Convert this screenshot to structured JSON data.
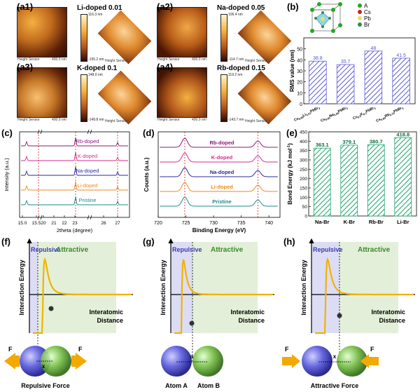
{
  "afm": {
    "a1": {
      "label": "(a1)",
      "title": "Li-doped 0.01",
      "cmax": "116.3 nm",
      "cmin": "-155.2 nm"
    },
    "a2": {
      "label": "(a2)",
      "title": "Na-doped 0.05",
      "cmax": "106.4 nm",
      "cmin": "-114.7 nm"
    },
    "a3": {
      "label": "(a3)",
      "title": "K-doped 0.1",
      "cmax": "148.0 nm",
      "cmin": "-149.8 nm"
    },
    "a4": {
      "label": "(a4)",
      "title": "Rb-doped 0.15",
      "cmax": "119.2 nm",
      "cmin": "-143.7 nm"
    },
    "sensor": "Height Sensor",
    "scale": "400.0 nm"
  },
  "panel_labels": {
    "b": "(b)",
    "c": "(c)",
    "d": "(d)",
    "e": "(e)",
    "f": "(f)",
    "g": "(g)",
    "h": "(h)"
  },
  "crystal_legend": [
    {
      "symbol": "A",
      "color": "#22aa22"
    },
    {
      "symbol": "Cs",
      "color": "#cc2222"
    },
    {
      "symbol": "Pb",
      "color": "#e8e060"
    },
    {
      "symbol": "Br",
      "color": "#2e8b57"
    }
  ],
  "colors": {
    "rb": "#8b1a7a",
    "k": "#d62e8c",
    "na": "#2a2aa0",
    "li": "#f08a1c",
    "pristine": "#1f8b8b",
    "hatch_blue": "#5b5bd6",
    "hatch_green": "#1aa36a",
    "curve": "#f2b300",
    "repulsive_bg": "#dcdcf5",
    "attractive_bg": "#e3efd8"
  },
  "chart_data": [
    {
      "type": "bar",
      "panel": "(b)",
      "categories": [
        "Cs0.99Li0.01PbBr3",
        "Cs0.95Na0.05PbBr3",
        "Cs0.9K0.1PbBr3",
        "Cs0.85Rb0.15PbBr3"
      ],
      "category_labels": [
        {
          "main": "Cs",
          "sub": "0.99",
          "mid": "Li",
          "sub2": "0.01",
          "end": "PbBr",
          "sub3": "3"
        },
        {
          "main": "Cs",
          "sub": "0.95",
          "mid": "Na",
          "sub2": "0.05",
          "end": "PbBr",
          "sub3": "3"
        },
        {
          "main": "Cs",
          "sub": "0.9",
          "mid": "K",
          "sub2": "0.1",
          "end": "PbBr",
          "sub3": "3"
        },
        {
          "main": "Cs",
          "sub": "0.85",
          "mid": "Rb",
          "sub2": "0.15",
          "end": "PbBr",
          "sub3": "3"
        }
      ],
      "values": [
        38.8,
        35.7,
        48.0,
        41.5
      ],
      "value_labels": [
        "38.8",
        "35.7",
        "48",
        "41.5"
      ],
      "ylabel": "RMS value (nm)",
      "ylim": [
        0,
        60
      ],
      "yticks": [
        "0",
        "10",
        "20",
        "30",
        "40",
        "50"
      ]
    },
    {
      "type": "line",
      "panel": "(c)",
      "series": [
        {
          "name": "Rb-doped"
        },
        {
          "name": "K-doped"
        },
        {
          "name": "Na-doped"
        },
        {
          "name": "Li-doped"
        },
        {
          "name": "Pristine"
        }
      ],
      "xlabel": "2theta (degree)",
      "ylabel": "Intensity (a.u.)",
      "xticks": [
        "15.0",
        "15.5",
        "20",
        "21",
        "22",
        "23",
        "26",
        "27"
      ]
    },
    {
      "type": "line",
      "panel": "(d)",
      "series": [
        {
          "name": "Rb-doped"
        },
        {
          "name": "K-doped"
        },
        {
          "name": "Na-doped"
        },
        {
          "name": "Li-doped"
        },
        {
          "name": "Pristine"
        }
      ],
      "xlabel": "Binding Energy (eV)",
      "ylabel": "Counts (a.u.)",
      "xlim": [
        720,
        742
      ],
      "xticks": [
        "720",
        "725",
        "730",
        "735",
        "740"
      ],
      "peaks_eV": [
        724.8,
        738.0
      ]
    },
    {
      "type": "bar",
      "panel": "(e)",
      "categories": [
        "Na-Br",
        "K-Br",
        "Rb-Br",
        "Li-Br"
      ],
      "values": [
        363.1,
        379.1,
        380.7,
        418.8
      ],
      "value_labels": [
        "363.1",
        "379.1",
        "380.7",
        "418.8"
      ],
      "ylabel": "Bond Energy (kJ mol",
      "ylabel_sup": "-1",
      "ylabel_end": ")",
      "ylim": [
        0,
        450
      ],
      "yticks": [
        "0",
        "50",
        "100",
        "150",
        "200",
        "250",
        "300",
        "350",
        "400",
        "450"
      ]
    }
  ],
  "potential": {
    "ylabel": "Interaction Energy",
    "xlabel1": "Interatomic",
    "xlabel2": "Distance",
    "repulsive": "Repulsive",
    "attractive": "Attractive",
    "f_caption": "Repulsive Force",
    "g_atom_a": "Atom A",
    "g_atom_b": "Atom B",
    "h_caption": "Attractive Force",
    "force": "F",
    "x": "x",
    "a": "a"
  }
}
